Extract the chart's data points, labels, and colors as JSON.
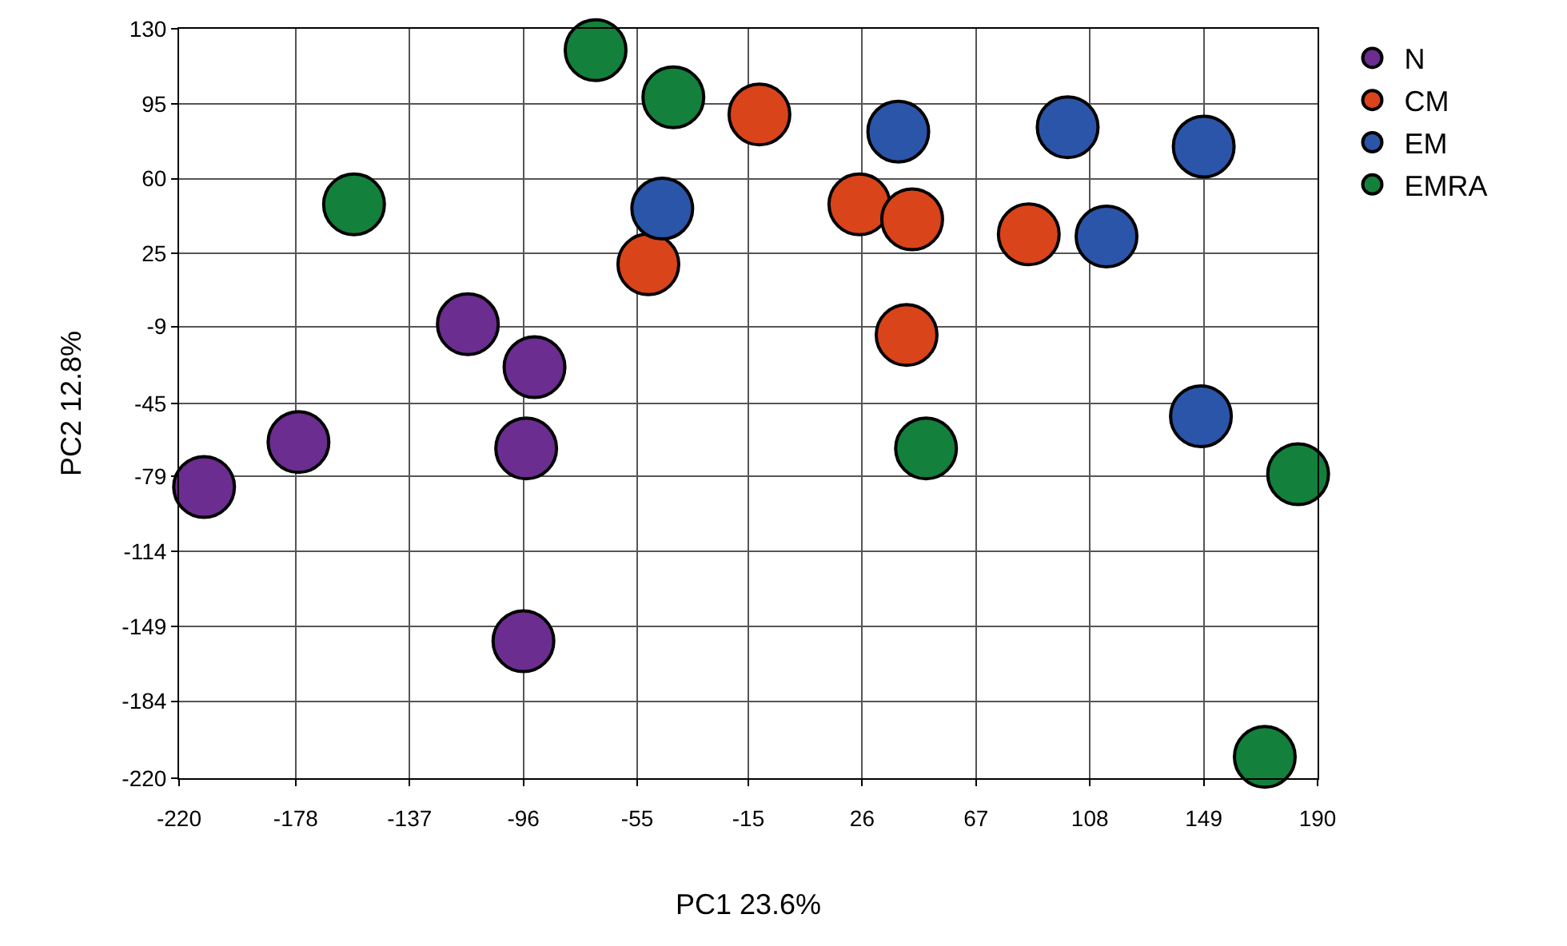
{
  "chart_data": {
    "type": "scatter",
    "xlabel": "PC1 23.6%",
    "ylabel": "PC2 12.8%",
    "xlim": [
      -220,
      190
    ],
    "xticks": [
      -220,
      -178,
      -137,
      -96,
      -55,
      -15,
      26,
      67,
      108,
      149,
      190
    ],
    "ylim": [
      -220,
      130
    ],
    "yticks": [
      130,
      95,
      60,
      25,
      -9,
      -45,
      -79,
      -114,
      -149,
      -184,
      -220
    ],
    "grid": true,
    "legend": "top right",
    "marker": "circle",
    "series": [
      {
        "name": "N",
        "color": "#6b2d8f",
        "x": [
          -211,
          -177,
          -116,
          -92,
          -95,
          -96
        ],
        "values": [
          -84,
          -63,
          -8,
          -28,
          -66,
          -156
        ]
      },
      {
        "name": "CM",
        "color": "#d9441a",
        "x": [
          -11,
          25,
          44,
          -51,
          42,
          86
        ],
        "values": [
          90,
          48,
          41,
          20,
          -13,
          34
        ]
      },
      {
        "name": "EM",
        "color": "#2b55a8",
        "x": [
          39,
          100,
          149,
          -46,
          114,
          148
        ],
        "values": [
          82,
          84,
          75,
          46,
          33,
          -51
        ]
      },
      {
        "name": "EMRA",
        "color": "#13803c",
        "x": [
          -70,
          -42,
          -157,
          49,
          183,
          171
        ],
        "values": [
          120,
          98,
          48,
          -66,
          -78,
          -210
        ]
      }
    ]
  }
}
